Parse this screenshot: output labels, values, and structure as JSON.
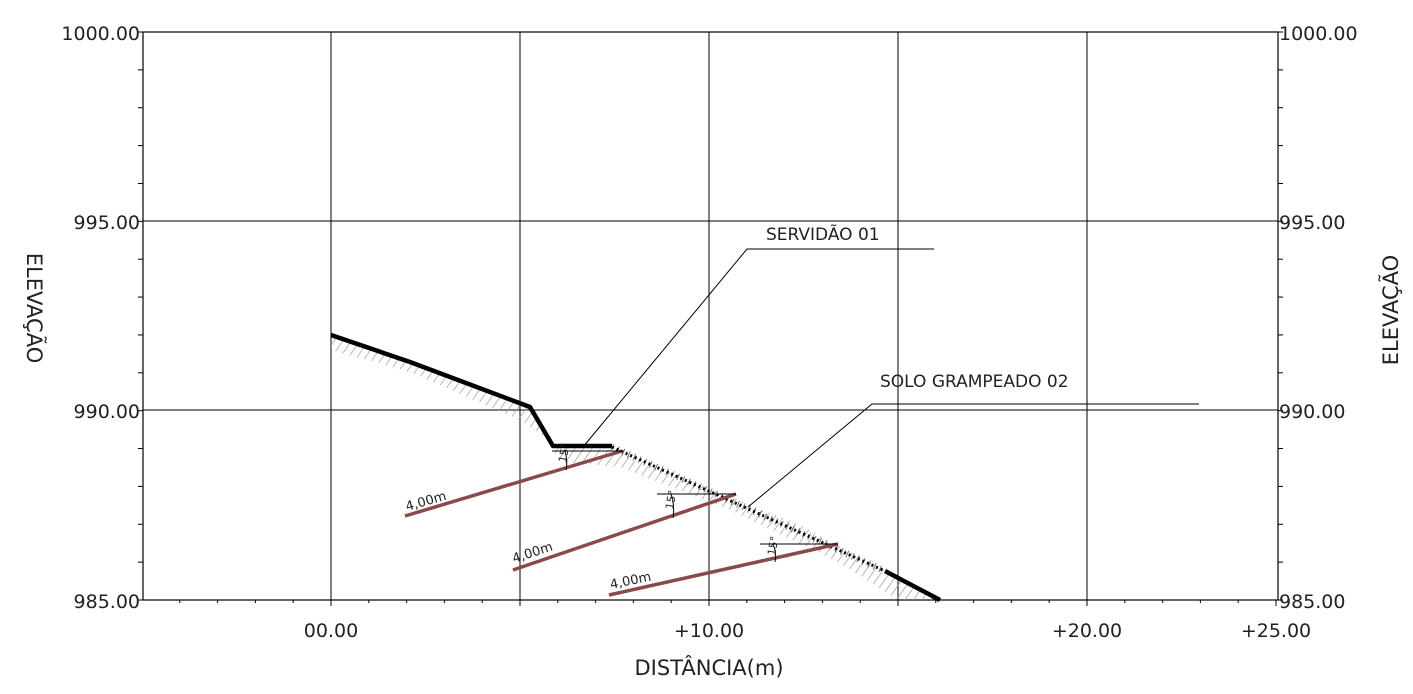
{
  "axes": {
    "x_label": "DISTÂNCIA(m)",
    "y_label": "ELEVAÇÃO",
    "x_tick_labels": [
      "00.00",
      "+10.00",
      "+20.00",
      "+25.00"
    ],
    "y_tick_labels": [
      "1000.00",
      "995.00",
      "990.00",
      "985.00"
    ]
  },
  "annotations": {
    "servidao": "SERVIDÃO 01",
    "solo": "SOLO GRAMPEADO 02"
  },
  "nails": [
    {
      "label": "4,00m",
      "angle": "15°"
    },
    {
      "label": "4,00m",
      "angle": "15°"
    },
    {
      "label": "4,00m",
      "angle": "15°"
    }
  ],
  "colors": {
    "terrain": "#000000",
    "nail": "#8b4a4a",
    "grid": "#000000",
    "hatch": "#9a9a9a"
  }
}
